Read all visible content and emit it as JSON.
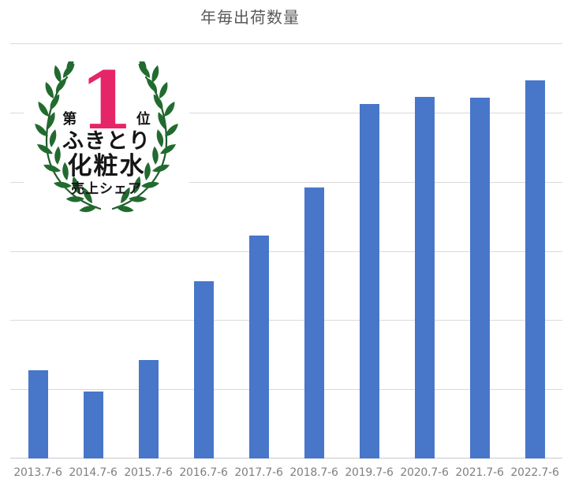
{
  "title": "年毎出荷数量",
  "badge": {
    "rank_prefix": "第",
    "rank_number": "1",
    "rank_suffix": "位",
    "line1": "ふきとり",
    "line2": "化粧水",
    "line3": "売上シェア"
  },
  "colors": {
    "bar": "#4876c9",
    "accent_pink": "#e62569",
    "wreath_green": "#226b2f",
    "title_text": "#595959",
    "axis_text": "#808080",
    "gridline": "#d9d9d9"
  },
  "chart_data": {
    "type": "bar",
    "title": "年毎出荷数量",
    "categories": [
      "2013.7-6",
      "2014.7-6",
      "2015.7-6",
      "2016.7-6",
      "2017.7-6",
      "2018.7-6",
      "2019.7-6",
      "2020.7-6",
      "2021.7-6",
      "2022.7-6"
    ],
    "values": [
      1.28,
      0.97,
      1.42,
      2.56,
      3.22,
      3.92,
      5.12,
      5.23,
      5.22,
      5.46
    ],
    "xlabel": "",
    "ylabel": "",
    "ylim": [
      0,
      6
    ],
    "grid": "horizontal gridlines at interval 1, no y-axis tick labels",
    "legend": "none",
    "note": "values are relative units estimated from unlabeled gridlines; baseline = 0"
  }
}
